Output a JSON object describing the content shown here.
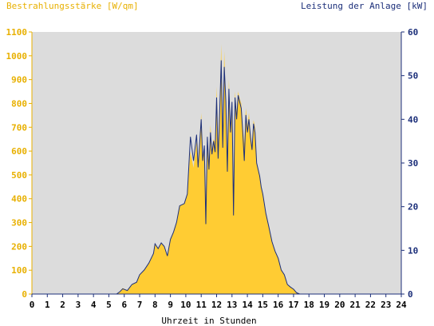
{
  "colors": {
    "plot_bg": "#dcdcdc",
    "irradiance": "#ffcc33",
    "irradiance_label": "#e8b000",
    "power": "#1c2f7a",
    "power_label": "#1c2f7a",
    "axis_text": "#000000"
  },
  "chart_data": {
    "type": "area",
    "title_left": "Bestrahlungsstärke [W/qm]",
    "title_right": "Leistung der Anlage [kW]",
    "xlabel": "Uhrzeit in Stunden",
    "xlim": [
      0,
      24
    ],
    "ylim_left": [
      0,
      1100
    ],
    "ylim_right": [
      0,
      60
    ],
    "x_ticks": [
      "0",
      "1",
      "2",
      "3",
      "4",
      "5",
      "6",
      "7",
      "8",
      "9",
      "10",
      "11",
      "12",
      "13",
      "14",
      "15",
      "16",
      "17",
      "18",
      "19",
      "20",
      "21",
      "22",
      "23",
      "24"
    ],
    "y_left_ticks": [
      "0",
      "100",
      "200",
      "300",
      "400",
      "500",
      "600",
      "700",
      "800",
      "900",
      "1000",
      "1100"
    ],
    "y_right_ticks": [
      "0",
      "10",
      "20",
      "30",
      "40",
      "50",
      "60"
    ],
    "grid": false,
    "series": [
      {
        "name": "Bestrahlungsstärke [W/qm]",
        "axis": "left",
        "style": "area",
        "x": [
          0,
          5.5,
          5.7,
          5.9,
          6.2,
          6.5,
          6.8,
          7.0,
          7.3,
          7.6,
          7.9,
          8.0,
          8.2,
          8.4,
          8.6,
          8.8,
          9.0,
          9.2,
          9.4,
          9.6,
          9.9,
          10.1,
          10.3,
          10.5,
          10.7,
          10.8,
          11.0,
          11.1,
          11.2,
          11.3,
          11.4,
          11.5,
          11.6,
          11.7,
          11.8,
          11.9,
          12.0,
          12.1,
          12.2,
          12.3,
          12.4,
          12.5,
          12.6,
          12.7,
          12.8,
          12.9,
          13.0,
          13.1,
          13.2,
          13.3,
          13.4,
          13.5,
          13.6,
          13.7,
          13.8,
          13.9,
          14.0,
          14.1,
          14.2,
          14.3,
          14.4,
          14.5,
          14.6,
          14.7,
          14.8,
          14.9,
          15.0,
          15.1,
          15.2,
          15.4,
          15.6,
          15.8,
          16.0,
          16.2,
          16.4,
          16.6,
          16.8,
          17.0,
          17.2,
          17.4,
          17.6,
          17.8,
          18.0,
          18.2,
          18.5,
          18.8,
          19.1,
          19.4,
          19.7,
          20.0,
          24
        ],
        "values": [
          0,
          0,
          10,
          25,
          15,
          40,
          50,
          80,
          100,
          130,
          170,
          210,
          190,
          215,
          200,
          160,
          230,
          260,
          300,
          370,
          380,
          420,
          600,
          530,
          640,
          520,
          760,
          560,
          620,
          400,
          650,
          520,
          710,
          600,
          650,
          640,
          870,
          600,
          780,
          1050,
          620,
          1020,
          800,
          550,
          900,
          700,
          800,
          420,
          850,
          760,
          850,
          820,
          800,
          700,
          630,
          780,
          700,
          760,
          680,
          620,
          730,
          700,
          550,
          520,
          500,
          450,
          420,
          380,
          340,
          280,
          220,
          180,
          150,
          100,
          80,
          40,
          30,
          20,
          5,
          0,
          0,
          0,
          0,
          0,
          0,
          0,
          0,
          0,
          0,
          0,
          0
        ]
      },
      {
        "name": "Leistung der Anlage [kW]",
        "axis": "right",
        "style": "line",
        "x": [
          0,
          5.5,
          5.7,
          5.9,
          6.2,
          6.5,
          6.8,
          7.0,
          7.3,
          7.6,
          7.9,
          8.0,
          8.2,
          8.4,
          8.6,
          8.8,
          9.0,
          9.2,
          9.4,
          9.6,
          9.9,
          10.1,
          10.3,
          10.5,
          10.7,
          10.8,
          11.0,
          11.1,
          11.2,
          11.3,
          11.4,
          11.5,
          11.6,
          11.7,
          11.8,
          11.9,
          12.0,
          12.1,
          12.2,
          12.3,
          12.4,
          12.5,
          12.6,
          12.7,
          12.8,
          12.9,
          13.0,
          13.1,
          13.2,
          13.3,
          13.4,
          13.5,
          13.6,
          13.7,
          13.8,
          13.9,
          14.0,
          14.1,
          14.2,
          14.3,
          14.4,
          14.5,
          14.6,
          14.7,
          14.8,
          14.9,
          15.0,
          15.1,
          15.2,
          15.4,
          15.6,
          15.8,
          16.0,
          16.2,
          16.4,
          16.6,
          16.8,
          17.0,
          17.2,
          17.4,
          17.6,
          17.8,
          18.0,
          18.2,
          18.5,
          18.8,
          19.1,
          19.4,
          19.7,
          20.0,
          24
        ],
        "values": [
          0,
          0,
          0.5,
          1.2,
          0.8,
          2.2,
          2.7,
          4.4,
          5.5,
          7.1,
          9.3,
          11.5,
          10.4,
          11.7,
          10.9,
          8.7,
          12.5,
          14.2,
          16.4,
          20.2,
          20.7,
          22.9,
          36.0,
          30.5,
          36.5,
          29.0,
          40.0,
          30.5,
          34.0,
          16.0,
          36.0,
          28.5,
          37.0,
          32.0,
          35.0,
          32.5,
          45.0,
          31.0,
          42.0,
          53.5,
          33.5,
          52.0,
          44.0,
          28.0,
          47.0,
          37.0,
          44.0,
          18.0,
          45.0,
          40.0,
          45.5,
          44.0,
          42.5,
          37.0,
          30.5,
          41.0,
          37.0,
          40.0,
          36.0,
          33.0,
          39.0,
          37.0,
          30.0,
          28.5,
          27.0,
          24.5,
          22.9,
          20.7,
          18.5,
          15.3,
          12.0,
          9.8,
          8.2,
          5.5,
          4.4,
          2.2,
          1.6,
          1.1,
          0.3,
          0,
          0,
          0,
          0,
          0,
          0,
          0,
          0,
          0,
          0,
          0,
          0
        ]
      }
    ]
  }
}
